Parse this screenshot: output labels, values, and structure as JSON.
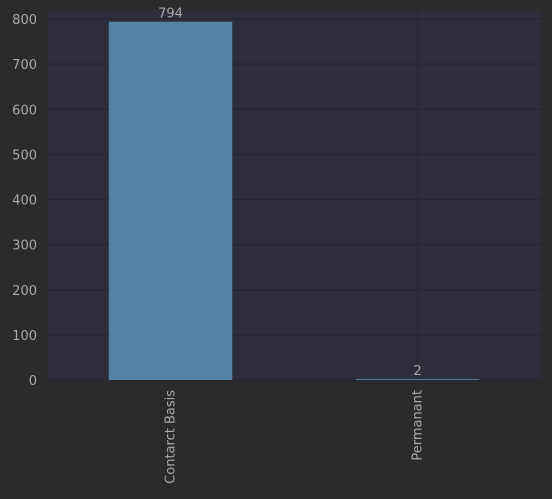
{
  "colors": {
    "page_background": "#2b2b2b",
    "plot_background": "#2e2e3b",
    "grid": "#272733",
    "bar": "#5282a6",
    "text": "#a9a9a9"
  },
  "chart_data": {
    "type": "bar",
    "categories": [
      "Contarct Basis",
      "Permanant"
    ],
    "values": [
      794,
      2
    ],
    "data_labels": [
      "794",
      "2"
    ],
    "title": "",
    "xlabel": "",
    "ylabel": "",
    "ylim": [
      0,
      820
    ],
    "yticks": [
      0,
      100,
      200,
      300,
      400,
      500,
      600,
      700,
      800
    ],
    "ytick_labels": [
      "0",
      "100",
      "200",
      "300",
      "400",
      "500",
      "600",
      "700",
      "800"
    ],
    "grid": true,
    "legend": "none",
    "xtick_rotation": "vertical"
  }
}
